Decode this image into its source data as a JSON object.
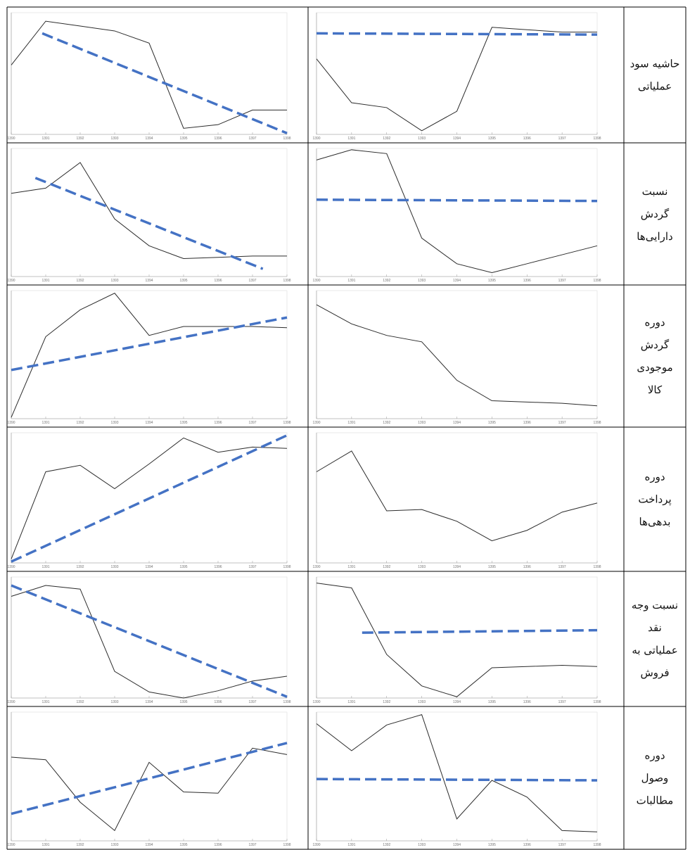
{
  "table": {
    "line_color": "#2b2b2b",
    "trend_color": "#4472c4",
    "rows": [
      {
        "label": [
          "حاشیه سود",
          "عملیاتی"
        ],
        "charts": [
          {
            "type": "line",
            "xlim": [
              1390,
              1398
            ],
            "ylim": [
              0,
              100
            ],
            "x": [
              1390,
              1391,
              1392,
              1393,
              1394,
              1395,
              1396,
              1397,
              1398
            ],
            "values": [
              57,
              93,
              89,
              85,
              75,
              5,
              8,
              20,
              20
            ],
            "trend": {
              "x": [
                1390.9,
                1398
              ],
              "values": [
                83,
                1
              ]
            }
          },
          {
            "type": "line",
            "xlim": [
              1390,
              1398
            ],
            "ylim": [
              0,
              100
            ],
            "x": [
              1390,
              1391,
              1392,
              1393,
              1394,
              1395,
              1396,
              1397,
              1398
            ],
            "values": [
              62,
              26,
              22,
              3,
              19,
              88,
              86,
              84,
              84
            ],
            "trend": {
              "x": [
                1390,
                1398
              ],
              "values": [
                83,
                82
              ]
            }
          }
        ]
      },
      {
        "label": [
          "نسبت",
          "گردش",
          "دارایی‌ها"
        ],
        "charts": [
          {
            "type": "line",
            "xlim": [
              1390,
              1398
            ],
            "ylim": [
              0,
              100
            ],
            "x": [
              1390,
              1391,
              1392,
              1393,
              1394,
              1395,
              1396,
              1397,
              1398
            ],
            "values": [
              65,
              69,
              89,
              45,
              24,
              14,
              15,
              16,
              16
            ],
            "trend": {
              "x": [
                1390.7,
                1397.3
              ],
              "values": [
                77,
                6
              ]
            }
          },
          {
            "type": "line",
            "xlim": [
              1390,
              1398
            ],
            "ylim": [
              0,
              100
            ],
            "x": [
              1390,
              1391,
              1392,
              1393,
              1394,
              1395,
              1396,
              1397,
              1398
            ],
            "values": [
              91,
              99,
              96,
              30,
              10,
              3,
              10,
              17,
              24
            ],
            "trend": {
              "x": [
                1390,
                1398
              ],
              "values": [
                60,
                59
              ]
            }
          }
        ]
      },
      {
        "label": [
          "دوره",
          "گردش",
          "موجودی",
          "کالا"
        ],
        "charts": [
          {
            "type": "line",
            "xlim": [
              1390,
              1398
            ],
            "ylim": [
              0,
              100
            ],
            "x": [
              1390,
              1391,
              1392,
              1393,
              1394,
              1395,
              1396,
              1397,
              1398
            ],
            "values": [
              1,
              64,
              85,
              98,
              65,
              72,
              72,
              72,
              71
            ],
            "trend": {
              "x": [
                1390,
                1398
              ],
              "values": [
                38,
                79
              ]
            }
          },
          {
            "type": "line",
            "xlim": [
              1390,
              1398
            ],
            "ylim": [
              0,
              100
            ],
            "x": [
              1390,
              1391,
              1392,
              1393,
              1394,
              1395,
              1396,
              1397,
              1398
            ],
            "values": [
              89,
              74,
              65,
              60,
              30,
              14,
              13,
              12,
              10
            ]
          }
        ]
      },
      {
        "label": [
          "دوره",
          "پرداخت",
          "بدهی‌ها"
        ],
        "charts": [
          {
            "type": "line",
            "xlim": [
              1390,
              1398
            ],
            "ylim": [
              0,
              100
            ],
            "x": [
              1390,
              1391,
              1392,
              1393,
              1394,
              1395,
              1396,
              1397,
              1398
            ],
            "values": [
              3,
              70,
              75,
              57,
              76,
              96,
              85,
              89,
              88
            ],
            "trend": {
              "x": [
                1390,
                1398
              ],
              "values": [
                1,
                98
              ]
            }
          },
          {
            "type": "line",
            "xlim": [
              1390,
              1398
            ],
            "ylim": [
              0,
              100
            ],
            "x": [
              1390,
              1391,
              1392,
              1393,
              1394,
              1395,
              1396,
              1397,
              1398
            ],
            "values": [
              70,
              86,
              40,
              41,
              32,
              17,
              25,
              39,
              46
            ]
          }
        ]
      },
      {
        "label": [
          "نسبت وجه",
          "نقد",
          "عملیاتی به",
          "فروش"
        ],
        "charts": [
          {
            "type": "line",
            "xlim": [
              1390,
              1398
            ],
            "ylim": [
              0,
              100
            ],
            "x": [
              1390,
              1391,
              1392,
              1393,
              1394,
              1395,
              1396,
              1397,
              1398
            ],
            "values": [
              84,
              93,
              90,
              22,
              5,
              0,
              6,
              14,
              18
            ],
            "trend": {
              "x": [
                1390,
                1398
              ],
              "values": [
                93,
                1
              ]
            }
          },
          {
            "type": "line",
            "xlim": [
              1390,
              1398
            ],
            "ylim": [
              0,
              100
            ],
            "x": [
              1390,
              1391,
              1392,
              1393,
              1394,
              1395,
              1396,
              1397,
              1398
            ],
            "values": [
              95,
              91,
              36,
              10,
              1,
              25,
              26,
              27,
              26
            ],
            "trend": {
              "x": [
                1391.3,
                1398
              ],
              "values": [
                54,
                56
              ]
            }
          }
        ]
      },
      {
        "label": [
          "دوره",
          "وصول",
          "مطالبات"
        ],
        "charts": [
          {
            "type": "line",
            "xlim": [
              1390,
              1398
            ],
            "ylim": [
              0,
              100
            ],
            "x": [
              1390,
              1391,
              1392,
              1393,
              1394,
              1395,
              1396,
              1397,
              1398
            ],
            "values": [
              65,
              63,
              30,
              8,
              61,
              38,
              37,
              72,
              67
            ],
            "trend": {
              "x": [
                1390,
                1398
              ],
              "values": [
                21,
                76
              ]
            }
          },
          {
            "type": "line",
            "xlim": [
              1390,
              1398
            ],
            "ylim": [
              0,
              100
            ],
            "x": [
              1390,
              1391,
              1392,
              1393,
              1394,
              1395,
              1396,
              1397,
              1398
            ],
            "values": [
              91,
              70,
              90,
              98,
              17,
              47,
              34,
              8,
              7
            ],
            "trend": {
              "x": [
                1390,
                1398
              ],
              "values": [
                48,
                47
              ]
            }
          }
        ]
      }
    ]
  }
}
